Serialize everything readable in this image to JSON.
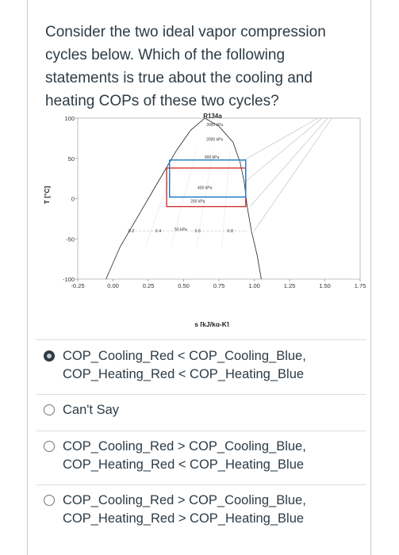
{
  "question": {
    "text": "Consider the two ideal vapor compression cycles below. Which of the following statements is true about the cooling and heating COPs of these two cycles?"
  },
  "chart_data": {
    "type": "line",
    "title": "R134a",
    "xlabel": "s [kJ/kg-K]",
    "ylabel": "T [°C]",
    "xlim": [
      -0.25,
      1.75
    ],
    "ylim": [
      -100,
      100
    ],
    "xticks": [
      "-0.25",
      "0.00",
      "0.25",
      "0.50",
      "0.75",
      "1.00",
      "1.25",
      "1.50",
      "1.75"
    ],
    "yticks": [
      "100",
      "50",
      "0",
      "-50",
      "-100"
    ],
    "isobar_labels": [
      "3000 kPa",
      "2000 kPa",
      "900 kPa",
      "400 kPa",
      "200 kPa",
      "50 kPa"
    ],
    "quality_labels": [
      "0.2",
      "0.4",
      "0.6",
      "0.8"
    ],
    "series": [
      {
        "color": "#d32f2f",
        "points": [
          [
            0.38,
            38
          ],
          [
            0.94,
            38
          ],
          [
            0.94,
            -10
          ],
          [
            0.38,
            -10
          ],
          [
            0.38,
            38
          ]
        ]
      },
      {
        "color": "#1f77c4",
        "points": [
          [
            0.4,
            48
          ],
          [
            0.94,
            48
          ],
          [
            0.94,
            2
          ],
          [
            0.4,
            2
          ],
          [
            0.4,
            48
          ]
        ]
      }
    ]
  },
  "answers": [
    {
      "line1": "COP_Cooling_Red < COP_Cooling_Blue,",
      "line2": "COP_Heating_Red < COP_Heating_Blue",
      "selected": true
    },
    {
      "line1": "Can't Say",
      "line2": "",
      "selected": false
    },
    {
      "line1": "COP_Cooling_Red > COP_Cooling_Blue,",
      "line2": "COP_Heating_Red < COP_Heating_Blue",
      "selected": false
    },
    {
      "line1": "COP_Cooling_Red > COP_Cooling_Blue,",
      "line2": "COP_Heating_Red > COP_Heating_Blue",
      "selected": false
    }
  ]
}
